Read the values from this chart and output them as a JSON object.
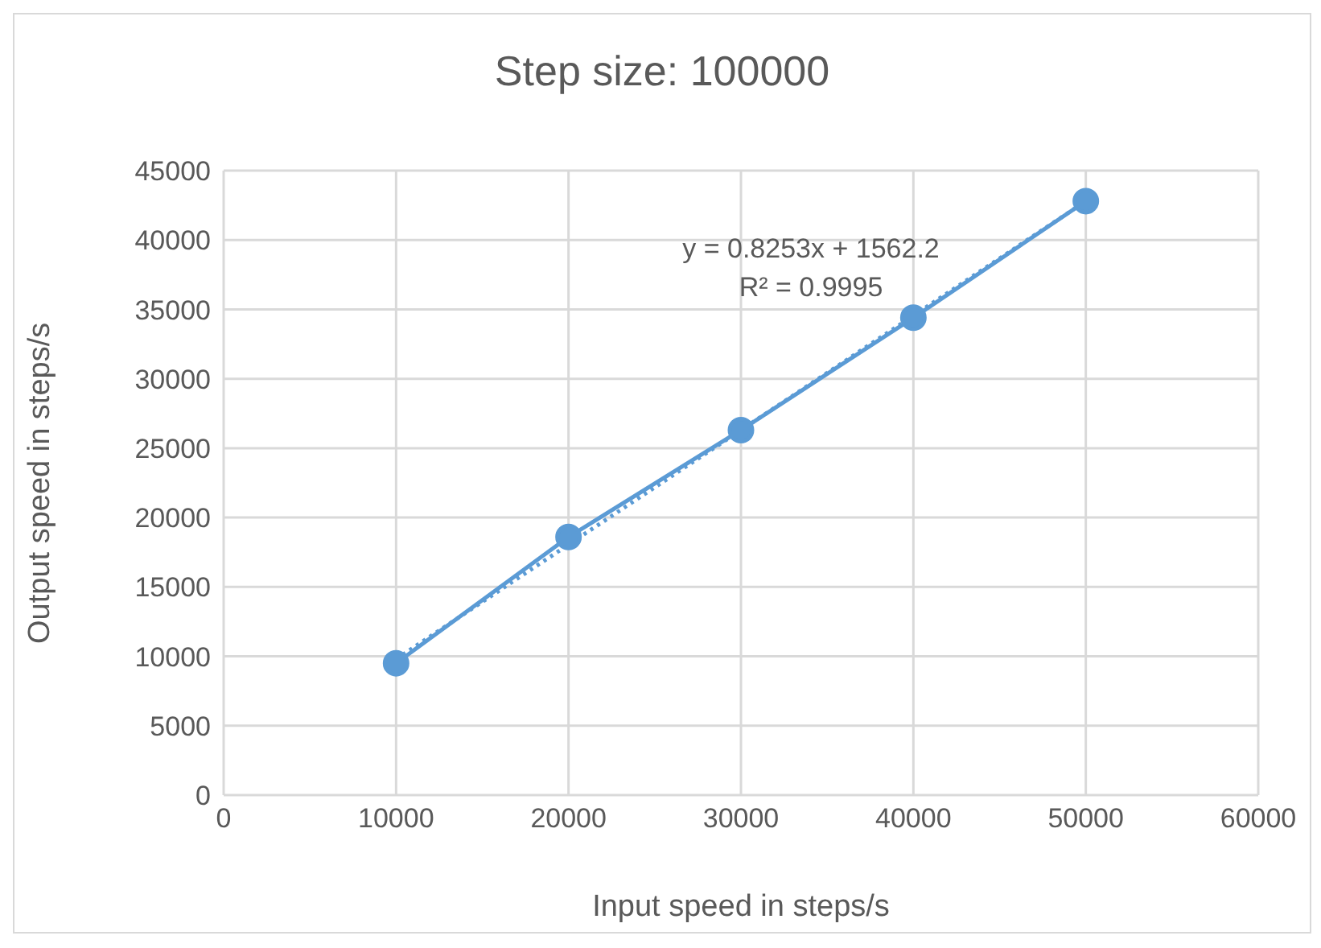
{
  "chart_data": {
    "type": "line",
    "title": "Step size: 100000",
    "xlabel": "Input speed in steps/s",
    "ylabel": "Output speed in steps/s",
    "xlim": [
      0,
      60000
    ],
    "xticks": [
      0,
      10000,
      20000,
      30000,
      40000,
      50000,
      60000
    ],
    "ylim": [
      0,
      45000
    ],
    "yticks": [
      0,
      5000,
      10000,
      15000,
      20000,
      25000,
      30000,
      35000,
      40000,
      45000
    ],
    "grid": true,
    "annotations": [
      "y = 0.8253x + 1562.2",
      "R² = 0.9995"
    ],
    "series": [
      {
        "color": "#5b9bd5",
        "x": [
          10000,
          20000,
          30000,
          40000,
          50000
        ],
        "values": [
          9500,
          18600,
          26300,
          34400,
          42800
        ],
        "marker": "circle",
        "line_style": "solid"
      },
      {
        "type": "line",
        "color": "#5b9bd5",
        "x": [
          10000,
          50000
        ],
        "values": [
          9800,
          42800
        ],
        "marker": "none",
        "line_style": "dotted"
      }
    ]
  }
}
